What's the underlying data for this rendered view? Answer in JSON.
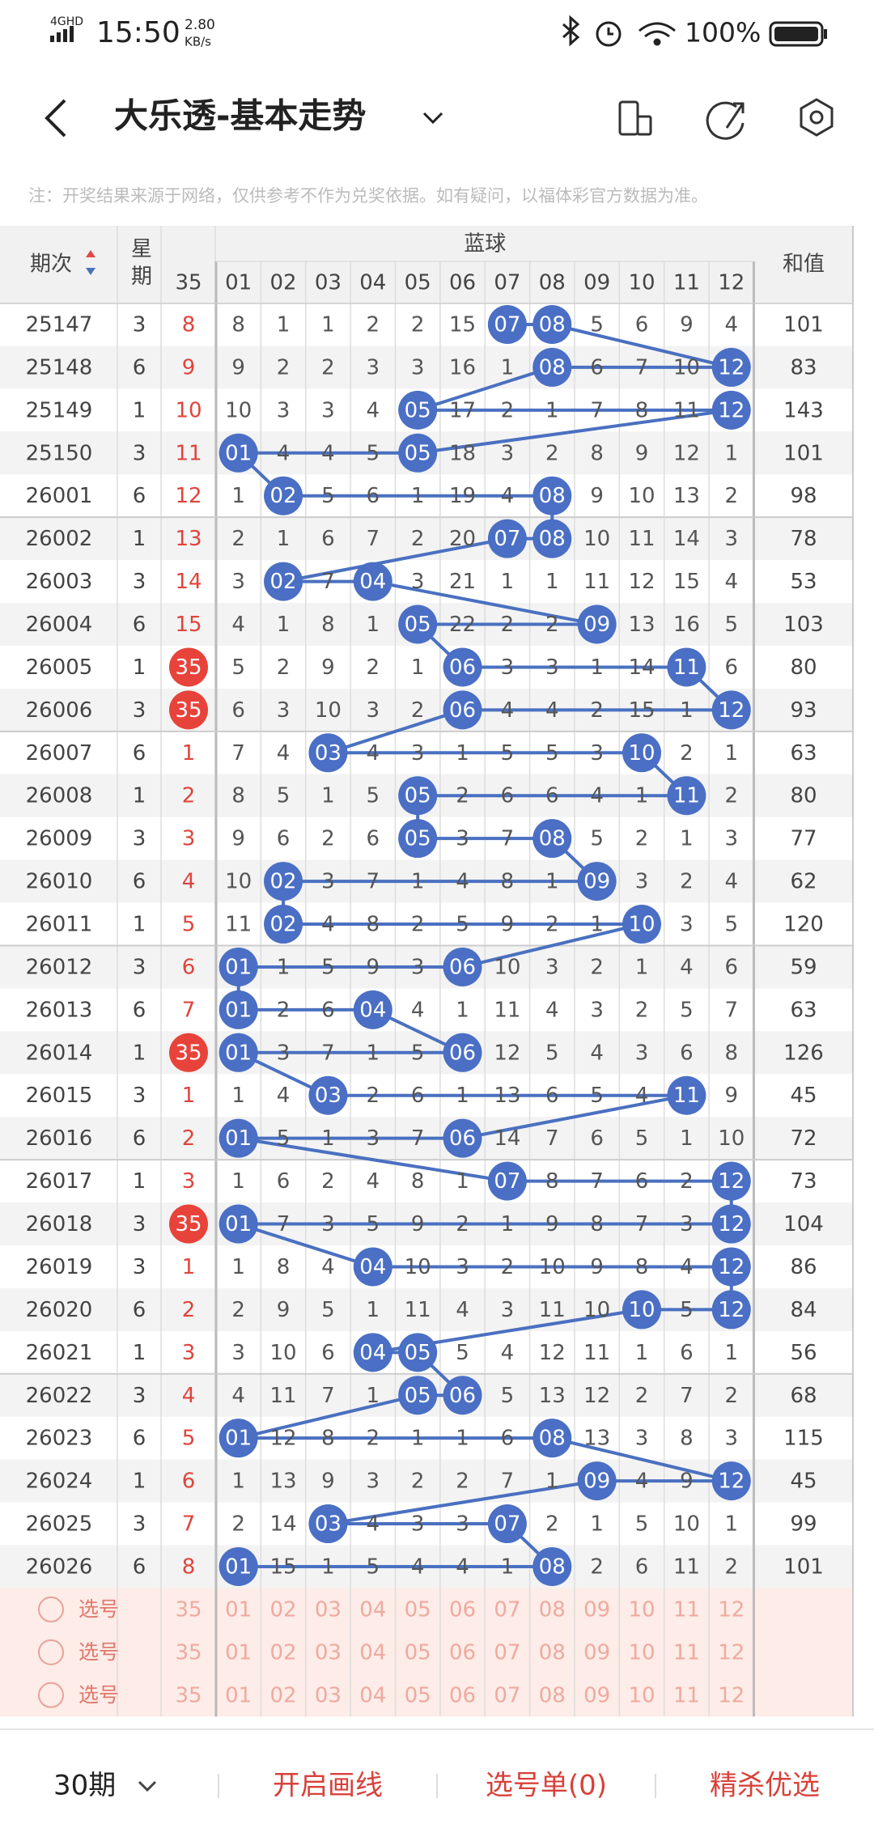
{
  "status_bar": {
    "network": "4GHD",
    "time": "15:50",
    "speed": "2.80",
    "speed_unit": "KB/s",
    "battery": "100%"
  },
  "header": {
    "title": "大乐透-基本走势"
  },
  "note": "注：开奖结果来源于网络，仅供参考不作为兑奖依据。如有疑问，以福体彩官方数据为准。",
  "table": {
    "col_issue": "期次",
    "col_week": "星期",
    "group": "蓝球",
    "col_35": "35",
    "columns": [
      "01",
      "02",
      "03",
      "04",
      "05",
      "06",
      "07",
      "08",
      "09",
      "10",
      "11",
      "12"
    ],
    "col_sum": "和值",
    "rows": [
      {
        "issue": "25147",
        "week": "3",
        "c35": "8",
        "cells": [
          "8",
          "1",
          "1",
          "2",
          "2",
          "15",
          {
            "text": "07",
            "hit": true
          },
          {
            "text": "08",
            "hit": true
          },
          "5",
          "6",
          "9",
          "4"
        ],
        "sum": "101"
      },
      {
        "issue": "25148",
        "week": "6",
        "c35": "9",
        "cells": [
          "9",
          "2",
          "2",
          "3",
          "3",
          "16",
          "1",
          {
            "text": "08",
            "hit": true
          },
          "6",
          "7",
          "10",
          {
            "text": "12",
            "hit": true
          }
        ],
        "sum": "83"
      },
      {
        "issue": "25149",
        "week": "1",
        "c35": "10",
        "cells": [
          "10",
          "3",
          "3",
          "4",
          {
            "text": "05",
            "hit": true
          },
          "17",
          "2",
          "1",
          "7",
          "8",
          "11",
          {
            "text": "12",
            "hit": true
          }
        ],
        "sum": "143"
      },
      {
        "issue": "25150",
        "week": "3",
        "c35": "11",
        "cells": [
          {
            "text": "01",
            "hit": true
          },
          "4",
          "4",
          "5",
          {
            "text": "05",
            "hit": true
          },
          "18",
          "3",
          "2",
          "8",
          "9",
          "12",
          "1"
        ],
        "sum": "101"
      },
      {
        "issue": "26001",
        "week": "6",
        "c35": "12",
        "cells": [
          "1",
          {
            "text": "02",
            "hit": true
          },
          "5",
          "6",
          "1",
          "19",
          "4",
          {
            "text": "08",
            "hit": true
          },
          "9",
          "10",
          "13",
          "2"
        ],
        "sum": "98"
      },
      {
        "issue": "26002",
        "week": "1",
        "c35": "13",
        "cells": [
          "2",
          "1",
          "6",
          "7",
          "2",
          "20",
          {
            "text": "07",
            "hit": true
          },
          {
            "text": "08",
            "hit": true
          },
          "10",
          "11",
          "14",
          "3"
        ],
        "sum": "78"
      },
      {
        "issue": "26003",
        "week": "3",
        "c35": "14",
        "cells": [
          "3",
          {
            "text": "02",
            "hit": true
          },
          "7",
          {
            "text": "04",
            "hit": true
          },
          "3",
          "21",
          "1",
          "1",
          "11",
          "12",
          "15",
          "4"
        ],
        "sum": "53"
      },
      {
        "issue": "26004",
        "week": "6",
        "c35": "15",
        "cells": [
          "4",
          "1",
          "8",
          "1",
          {
            "text": "05",
            "hit": true
          },
          "22",
          "2",
          "2",
          {
            "text": "09",
            "hit": true
          },
          "13",
          "16",
          "5"
        ],
        "sum": "103"
      },
      {
        "issue": "26005",
        "week": "1",
        "c35": {
          "text": "35",
          "hit": true
        },
        "cells": [
          "5",
          "2",
          "9",
          "2",
          "1",
          {
            "text": "06",
            "hit": true
          },
          "3",
          "3",
          "1",
          "14",
          {
            "text": "11",
            "hit": true
          },
          "6"
        ],
        "sum": "80"
      },
      {
        "issue": "26006",
        "week": "3",
        "c35": {
          "text": "35",
          "hit": true
        },
        "cells": [
          "6",
          "3",
          "10",
          "3",
          "2",
          {
            "text": "06",
            "hit": true
          },
          "4",
          "4",
          "2",
          "15",
          "1",
          {
            "text": "12",
            "hit": true
          }
        ],
        "sum": "93"
      },
      {
        "issue": "26007",
        "week": "6",
        "c35": "1",
        "cells": [
          "7",
          "4",
          {
            "text": "03",
            "hit": true
          },
          "4",
          "3",
          "1",
          "5",
          "5",
          "3",
          {
            "text": "10",
            "hit": true
          },
          "2",
          "1"
        ],
        "sum": "63"
      },
      {
        "issue": "26008",
        "week": "1",
        "c35": "2",
        "cells": [
          "8",
          "5",
          "1",
          "5",
          {
            "text": "05",
            "hit": true
          },
          "2",
          "6",
          "6",
          "4",
          "1",
          {
            "text": "11",
            "hit": true
          },
          "2"
        ],
        "sum": "80"
      },
      {
        "issue": "26009",
        "week": "3",
        "c35": "3",
        "cells": [
          "9",
          "6",
          "2",
          "6",
          {
            "text": "05",
            "hit": true
          },
          "3",
          "7",
          {
            "text": "08",
            "hit": true
          },
          "5",
          "2",
          "1",
          "3"
        ],
        "sum": "77"
      },
      {
        "issue": "26010",
        "week": "6",
        "c35": "4",
        "cells": [
          "10",
          {
            "text": "02",
            "hit": true
          },
          "3",
          "7",
          "1",
          "4",
          "8",
          "1",
          {
            "text": "09",
            "hit": true
          },
          "3",
          "2",
          "4"
        ],
        "sum": "62"
      },
      {
        "issue": "26011",
        "week": "1",
        "c35": "5",
        "cells": [
          "11",
          {
            "text": "02",
            "hit": true
          },
          "4",
          "8",
          "2",
          "5",
          "9",
          "2",
          "1",
          {
            "text": "10",
            "hit": true
          },
          "3",
          "5"
        ],
        "sum": "120"
      },
      {
        "issue": "26012",
        "week": "3",
        "c35": "6",
        "cells": [
          {
            "text": "01",
            "hit": true
          },
          "1",
          "5",
          "9",
          "3",
          {
            "text": "06",
            "hit": true
          },
          "10",
          "3",
          "2",
          "1",
          "4",
          "6"
        ],
        "sum": "59"
      },
      {
        "issue": "26013",
        "week": "6",
        "c35": "7",
        "cells": [
          {
            "text": "01",
            "hit": true
          },
          "2",
          "6",
          {
            "text": "04",
            "hit": true
          },
          "4",
          "1",
          "11",
          "4",
          "3",
          "2",
          "5",
          "7"
        ],
        "sum": "63"
      },
      {
        "issue": "26014",
        "week": "1",
        "c35": {
          "text": "35",
          "hit": true
        },
        "cells": [
          {
            "text": "01",
            "hit": true
          },
          "3",
          "7",
          "1",
          "5",
          {
            "text": "06",
            "hit": true
          },
          "12",
          "5",
          "4",
          "3",
          "6",
          "8"
        ],
        "sum": "126"
      },
      {
        "issue": "26015",
        "week": "3",
        "c35": "1",
        "cells": [
          "1",
          "4",
          {
            "text": "03",
            "hit": true
          },
          "2",
          "6",
          "1",
          "13",
          "6",
          "5",
          "4",
          {
            "text": "11",
            "hit": true
          },
          "9"
        ],
        "sum": "45"
      },
      {
        "issue": "26016",
        "week": "6",
        "c35": "2",
        "cells": [
          {
            "text": "01",
            "hit": true
          },
          "5",
          "1",
          "3",
          "7",
          {
            "text": "06",
            "hit": true
          },
          "14",
          "7",
          "6",
          "5",
          "1",
          "10"
        ],
        "sum": "72"
      },
      {
        "issue": "26017",
        "week": "1",
        "c35": "3",
        "cells": [
          "1",
          "6",
          "2",
          "4",
          "8",
          "1",
          {
            "text": "07",
            "hit": true
          },
          "8",
          "7",
          "6",
          "2",
          {
            "text": "12",
            "hit": true
          }
        ],
        "sum": "73"
      },
      {
        "issue": "26018",
        "week": "3",
        "c35": {
          "text": "35",
          "hit": true
        },
        "cells": [
          {
            "text": "01",
            "hit": true
          },
          "7",
          "3",
          "5",
          "9",
          "2",
          "1",
          "9",
          "8",
          "7",
          "3",
          {
            "text": "12",
            "hit": true
          }
        ],
        "sum": "104"
      },
      {
        "issue": "26019",
        "week": "3",
        "c35": "1",
        "cells": [
          "1",
          "8",
          "4",
          {
            "text": "04",
            "hit": true
          },
          "10",
          "3",
          "2",
          "10",
          "9",
          "8",
          "4",
          {
            "text": "12",
            "hit": true
          }
        ],
        "sum": "86"
      },
      {
        "issue": "26020",
        "week": "6",
        "c35": "2",
        "cells": [
          "2",
          "9",
          "5",
          "1",
          "11",
          "4",
          "3",
          "11",
          "10",
          {
            "text": "10",
            "hit": true
          },
          "5",
          {
            "text": "12",
            "hit": true
          }
        ],
        "sum": "84"
      },
      {
        "issue": "26021",
        "week": "1",
        "c35": "3",
        "cells": [
          "3",
          "10",
          "6",
          {
            "text": "04",
            "hit": true
          },
          {
            "text": "05",
            "hit": true
          },
          "5",
          "4",
          "12",
          "11",
          "1",
          "6",
          "1"
        ],
        "sum": "56"
      },
      {
        "issue": "26022",
        "week": "3",
        "c35": "4",
        "cells": [
          "4",
          "11",
          "7",
          "1",
          {
            "text": "05",
            "hit": true
          },
          {
            "text": "06",
            "hit": true
          },
          "5",
          "13",
          "12",
          "2",
          "7",
          "2"
        ],
        "sum": "68"
      },
      {
        "issue": "26023",
        "week": "6",
        "c35": "5",
        "cells": [
          {
            "text": "01",
            "hit": true
          },
          "12",
          "8",
          "2",
          "1",
          "1",
          "6",
          {
            "text": "08",
            "hit": true
          },
          "13",
          "3",
          "8",
          "3"
        ],
        "sum": "115"
      },
      {
        "issue": "26024",
        "week": "1",
        "c35": "6",
        "cells": [
          "1",
          "13",
          "9",
          "3",
          "2",
          "2",
          "7",
          "1",
          {
            "text": "09",
            "hit": true
          },
          "4",
          "9",
          {
            "text": "12",
            "hit": true
          }
        ],
        "sum": "45"
      },
      {
        "issue": "26025",
        "week": "3",
        "c35": "7",
        "cells": [
          "2",
          "14",
          {
            "text": "03",
            "hit": true
          },
          "4",
          "3",
          "3",
          {
            "text": "07",
            "hit": true
          },
          "2",
          "1",
          "5",
          "10",
          "1"
        ],
        "sum": "99"
      },
      {
        "issue": "26026",
        "week": "6",
        "c35": "8",
        "cells": [
          {
            "text": "01",
            "hit": true
          },
          "15",
          "1",
          "5",
          "4",
          "4",
          "1",
          {
            "text": "08",
            "hit": true
          },
          "2",
          "6",
          "11",
          "2"
        ],
        "sum": "101"
      }
    ],
    "pick_rows": [
      {
        "label": "选号",
        "c35": "35",
        "cells": [
          "01",
          "02",
          "03",
          "04",
          "05",
          "06",
          "07",
          "08",
          "09",
          "10",
          "11",
          "12"
        ]
      },
      {
        "label": "选号",
        "c35": "35",
        "cells": [
          "01",
          "02",
          "03",
          "04",
          "05",
          "06",
          "07",
          "08",
          "09",
          "10",
          "11",
          "12"
        ]
      },
      {
        "label": "选号",
        "c35": "35",
        "cells": [
          "01",
          "02",
          "03",
          "04",
          "05",
          "06",
          "07",
          "08",
          "09",
          "10",
          "11",
          "12"
        ]
      }
    ]
  },
  "footer": {
    "periods": "30期",
    "draw": "开启画线",
    "list": "选号单(0)",
    "premium": "精杀优选"
  }
}
